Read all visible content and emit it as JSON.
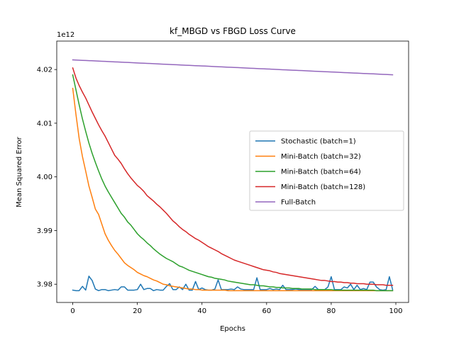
{
  "chart_data": {
    "type": "line",
    "title": "kf_MBGD vs FBGD Loss Curve",
    "xlabel": "Epochs",
    "ylabel": "Mean Squared Error",
    "y_offset_text": "1e12",
    "xlim": [
      -4.95,
      103.95
    ],
    "ylim": [
      3.9766,
      4.0253
    ],
    "x_ticks": [
      0,
      20,
      40,
      60,
      80,
      100
    ],
    "x_tick_labels": [
      "0",
      "20",
      "40",
      "60",
      "80",
      "100"
    ],
    "y_ticks": [
      3.98,
      3.99,
      4.0,
      4.01,
      4.02
    ],
    "y_tick_labels": [
      "3.98",
      "3.99",
      "4.00",
      "4.01",
      "4.02"
    ],
    "grid": false,
    "legend_position": "center-right",
    "series": [
      {
        "name": "Stochastic (batch=1)",
        "color": "#1f77b4",
        "values": [
          3.9789,
          3.9788,
          3.9788,
          3.9796,
          3.9789,
          3.9815,
          3.9807,
          3.9791,
          3.9788,
          3.979,
          3.979,
          3.9788,
          3.9789,
          3.979,
          3.9789,
          3.9795,
          3.9795,
          3.9789,
          3.9789,
          3.9789,
          3.979,
          3.98,
          3.979,
          3.9792,
          3.9792,
          3.9788,
          3.979,
          3.9789,
          3.9789,
          3.9796,
          3.9801,
          3.979,
          3.979,
          3.9795,
          3.979,
          3.98,
          3.9789,
          3.9789,
          3.9805,
          3.979,
          3.9793,
          3.979,
          3.9789,
          3.9789,
          3.9791,
          3.9808,
          3.979,
          3.979,
          3.979,
          3.9791,
          3.979,
          3.9795,
          3.9791,
          3.979,
          3.979,
          3.979,
          3.979,
          3.9812,
          3.979,
          3.979,
          3.979,
          3.9792,
          3.979,
          3.9791,
          3.979,
          3.9798,
          3.979,
          3.979,
          3.979,
          3.9791,
          3.979,
          3.979,
          3.979,
          3.979,
          3.979,
          3.9796,
          3.979,
          3.979,
          3.979,
          3.9795,
          3.9814,
          3.979,
          3.979,
          3.979,
          3.9795,
          3.9793,
          3.98,
          3.979,
          3.9798,
          3.979,
          3.9792,
          3.979,
          3.9804,
          3.9804,
          3.9795,
          3.979,
          3.9789,
          3.979,
          3.9814,
          3.979
        ]
      },
      {
        "name": "Mini-Batch (batch=32)",
        "color": "#ff7f0e",
        "values": [
          4.0165,
          4.0116,
          4.0071,
          4.0038,
          4.0011,
          3.9983,
          3.9962,
          3.994,
          3.993,
          3.9912,
          3.9894,
          3.9882,
          3.9872,
          3.9863,
          3.9856,
          3.9848,
          3.984,
          3.9835,
          3.9831,
          3.9827,
          3.9822,
          3.9819,
          3.9816,
          3.9814,
          3.9811,
          3.9808,
          3.9806,
          3.9803,
          3.98,
          3.9799,
          3.9797,
          3.9796,
          3.9795,
          3.9794,
          3.9793,
          3.9792,
          3.9791,
          3.9791,
          3.979,
          3.979,
          3.9789,
          3.9789,
          3.9789,
          3.9789,
          3.9789,
          3.9789,
          3.9789,
          3.9789,
          3.9788,
          3.9788,
          3.9788,
          3.9788,
          3.9788,
          3.9788,
          3.9788,
          3.9788,
          3.9788,
          3.9788,
          3.9788,
          3.9788,
          3.9788,
          3.9788,
          3.9788,
          3.9788,
          3.9788,
          3.9788,
          3.9788,
          3.9788,
          3.9788,
          3.9788,
          3.9788,
          3.9788,
          3.9788,
          3.9788,
          3.9788,
          3.9788,
          3.9788,
          3.9788,
          3.9788,
          3.9788,
          3.9788,
          3.9788,
          3.9788,
          3.9788,
          3.9788,
          3.9788,
          3.9788,
          3.9788,
          3.9788,
          3.9788,
          3.9788,
          3.9788,
          3.9788,
          3.9788,
          3.9788,
          3.9788,
          3.9788,
          3.9788,
          3.9788,
          3.9788
        ]
      },
      {
        "name": "Mini-Batch (batch=64)",
        "color": "#2ca02c",
        "values": [
          4.019,
          4.0162,
          4.0134,
          4.0108,
          4.0085,
          4.0063,
          4.0044,
          4.0027,
          4.0011,
          3.9996,
          3.9983,
          3.9972,
          3.9962,
          3.9952,
          3.9942,
          3.9932,
          3.9925,
          3.9916,
          3.991,
          3.9902,
          3.9894,
          3.9888,
          3.9883,
          3.9877,
          3.9872,
          3.9866,
          3.9861,
          3.9856,
          3.9852,
          3.9848,
          3.9845,
          3.9842,
          3.9838,
          3.9834,
          3.9832,
          3.9829,
          3.9826,
          3.9824,
          3.9822,
          3.982,
          3.9818,
          3.9816,
          3.9814,
          3.9813,
          3.9811,
          3.981,
          3.9809,
          3.9808,
          3.9806,
          3.9805,
          3.9804,
          3.9803,
          3.9802,
          3.9801,
          3.98,
          3.9799,
          3.9799,
          3.9798,
          3.9797,
          3.9797,
          3.9796,
          3.9795,
          3.9795,
          3.9794,
          3.9794,
          3.9793,
          3.9793,
          3.9793,
          3.9792,
          3.9792,
          3.9792,
          3.9791,
          3.9791,
          3.9791,
          3.9791,
          3.979,
          3.979,
          3.979,
          3.979,
          3.979,
          3.979,
          3.9789,
          3.9789,
          3.9789,
          3.9789,
          3.9789,
          3.9789,
          3.9789,
          3.9789,
          3.9789,
          3.9789,
          3.9789,
          3.9789,
          3.9789,
          3.9788,
          3.9788,
          3.9788,
          3.9788,
          3.9788,
          3.9788
        ]
      },
      {
        "name": "Mini-Batch (batch=128)",
        "color": "#d62728",
        "values": [
          4.0203,
          4.0184,
          4.017,
          4.0158,
          4.0147,
          4.0134,
          4.0121,
          4.0109,
          4.0097,
          4.0086,
          4.0076,
          4.0064,
          4.0052,
          4.004,
          4.0033,
          4.0025,
          4.0015,
          4.0006,
          3.9998,
          3.9991,
          3.9984,
          3.9979,
          3.9973,
          3.9965,
          3.996,
          3.9955,
          3.9949,
          3.9944,
          3.9938,
          3.9932,
          3.9925,
          3.9918,
          3.9913,
          3.9907,
          3.9902,
          3.9898,
          3.9893,
          3.9889,
          3.9885,
          3.9882,
          3.9878,
          3.9874,
          3.987,
          3.9867,
          3.9864,
          3.9861,
          3.9857,
          3.9854,
          3.9851,
          3.9848,
          3.9845,
          3.9843,
          3.9841,
          3.9839,
          3.9837,
          3.9835,
          3.9833,
          3.9831,
          3.9829,
          3.9827,
          3.9826,
          3.9825,
          3.9823,
          3.9822,
          3.982,
          3.9819,
          3.9818,
          3.9817,
          3.9816,
          3.9815,
          3.9814,
          3.9813,
          3.9812,
          3.9811,
          3.981,
          3.9809,
          3.9808,
          3.9807,
          3.9807,
          3.9806,
          3.9805,
          3.9805,
          3.9804,
          3.9804,
          3.9803,
          3.9803,
          3.9802,
          3.9802,
          3.9801,
          3.9801,
          3.9801,
          3.98,
          3.98,
          3.98,
          3.9799,
          3.9799,
          3.9799,
          3.9798,
          3.9798,
          3.9798
        ]
      },
      {
        "name": "Full-Batch",
        "color": "#9467bd",
        "values": [
          4.0218,
          4.02177,
          4.02174,
          4.02171,
          4.02168,
          4.02166,
          4.02163,
          4.0216,
          4.02157,
          4.02154,
          4.02152,
          4.02149,
          4.02146,
          4.02143,
          4.0214,
          4.02137,
          4.02134,
          4.02132,
          4.02129,
          4.02126,
          4.02123,
          4.0212,
          4.02117,
          4.02115,
          4.02112,
          4.02109,
          4.02106,
          4.02103,
          4.021,
          4.02097,
          4.02095,
          4.02092,
          4.02089,
          4.02086,
          4.02083,
          4.0208,
          4.02078,
          4.02075,
          4.02072,
          4.02069,
          4.02066,
          4.02064,
          4.02061,
          4.02058,
          4.02055,
          4.02052,
          4.0205,
          4.02047,
          4.02044,
          4.02041,
          4.02038,
          4.02036,
          4.02033,
          4.0203,
          4.02027,
          4.02024,
          4.02022,
          4.02019,
          4.02016,
          4.02013,
          4.0201,
          4.02008,
          4.02005,
          4.02002,
          4.01999,
          4.01996,
          4.01994,
          4.01991,
          4.01988,
          4.01985,
          4.01982,
          4.0198,
          4.01977,
          4.01974,
          4.01971,
          4.01968,
          4.01966,
          4.01963,
          4.0196,
          4.01957,
          4.01955,
          4.01952,
          4.01949,
          4.01946,
          4.01943,
          4.01941,
          4.01938,
          4.01935,
          4.01932,
          4.0193,
          4.01927,
          4.01924,
          4.01921,
          4.01919,
          4.01916,
          4.01913,
          4.0191,
          4.01908,
          4.01905,
          4.01902
        ]
      }
    ]
  }
}
